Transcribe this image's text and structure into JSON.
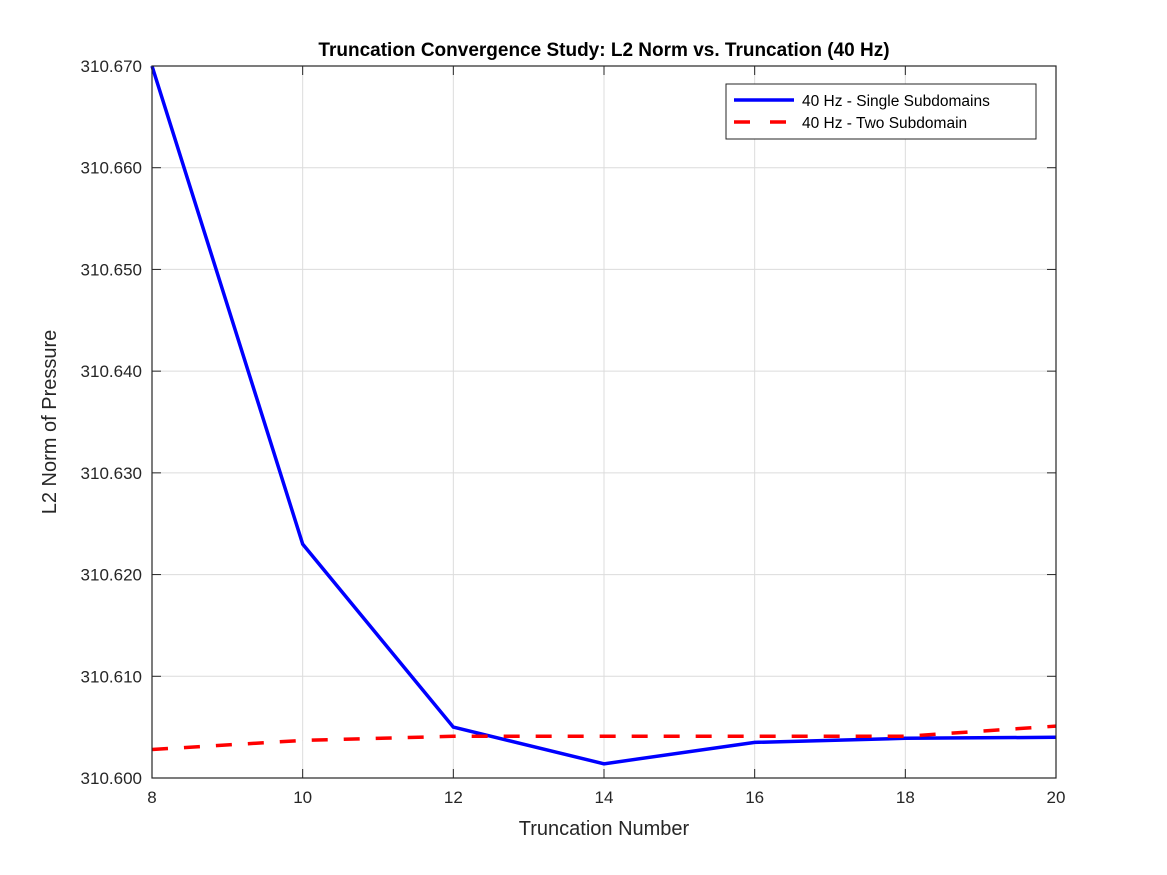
{
  "chart_data": {
    "type": "line",
    "title": "Truncation Convergence Study: L2 Norm vs. Truncation (40 Hz)",
    "xlabel": "Truncation Number",
    "ylabel": "L2 Norm of Pressure",
    "xlim": [
      8,
      20
    ],
    "ylim": [
      310.6,
      310.67
    ],
    "xticks": [
      8,
      10,
      12,
      14,
      16,
      18,
      20
    ],
    "xtick_labels": [
      "8",
      "10",
      "12",
      "14",
      "16",
      "18",
      "20"
    ],
    "yticks": [
      310.6,
      310.61,
      310.62,
      310.63,
      310.64,
      310.65,
      310.66,
      310.67
    ],
    "ytick_labels": [
      "310.600",
      "310.610",
      "310.620",
      "310.630",
      "310.640",
      "310.650",
      "310.660",
      "310.670"
    ],
    "grid": true,
    "legend_position": "top-right",
    "x": [
      8,
      10,
      12,
      14,
      16,
      18,
      20
    ],
    "series": [
      {
        "name": "40 Hz - Single Subdomains",
        "color": "#0000ff",
        "style": "solid",
        "values": [
          310.67,
          310.623,
          310.605,
          310.6014,
          310.6035,
          310.6039,
          310.604
        ]
      },
      {
        "name": "40 Hz - Two Subdomain",
        "color": "#ff0000",
        "style": "dashed",
        "values": [
          310.6028,
          310.6037,
          310.6041,
          310.6041,
          310.6041,
          310.6041,
          310.6051
        ]
      }
    ]
  }
}
